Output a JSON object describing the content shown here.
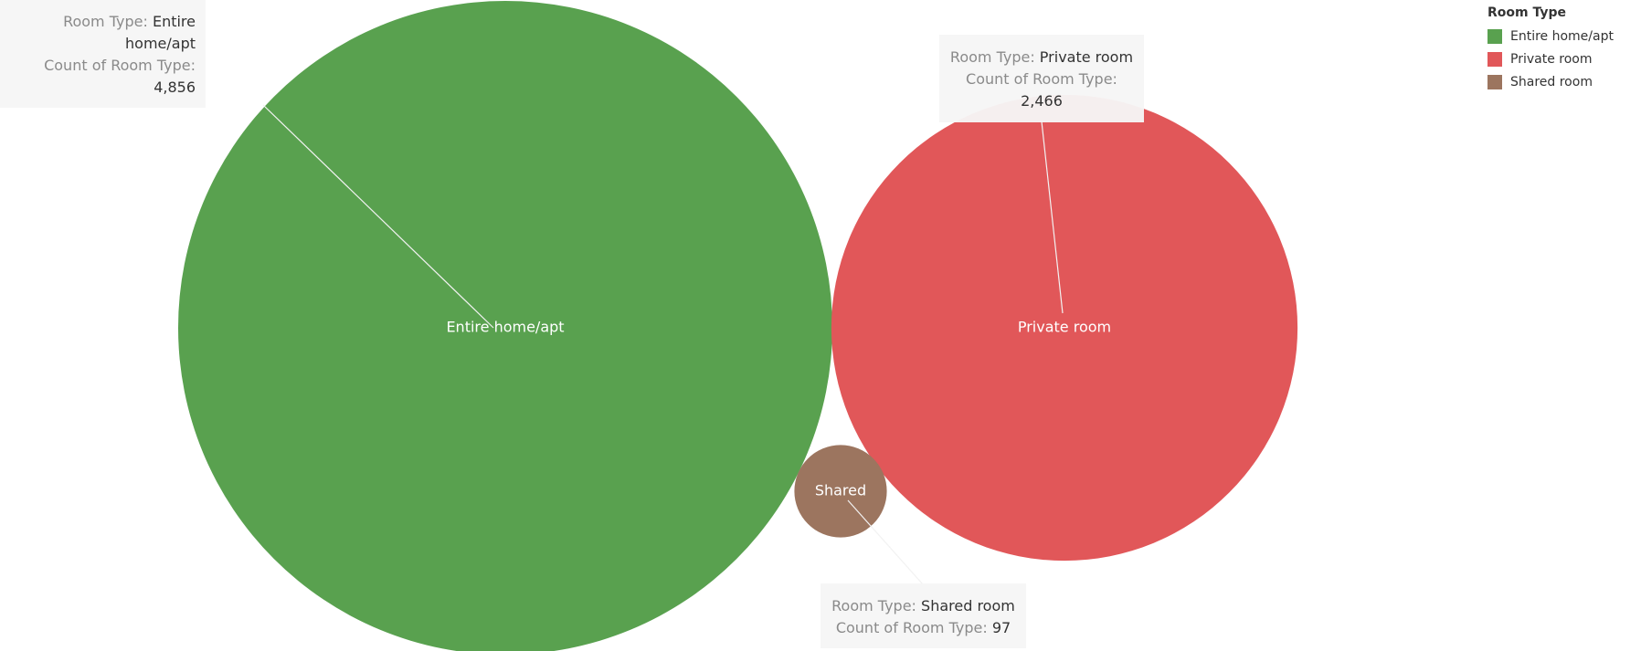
{
  "chart_data": {
    "type": "packed-bubble",
    "legend_title": "Room Type",
    "legend_position": "top-right",
    "items": [
      {
        "room_type": "Entire home/apt",
        "label": "Entire home/apt",
        "count": 4856,
        "count_text": "4,856",
        "color": "#59a14f"
      },
      {
        "room_type": "Private room",
        "label": "Private room",
        "count": 2466,
        "count_text": "2,466",
        "color": "#e15759"
      },
      {
        "room_type": "Shared room",
        "label": "Shared",
        "count": 97,
        "count_text": "97",
        "color": "#9c755f"
      }
    ],
    "tooltip_labels": {
      "room_type": "Room Type:",
      "count": "Count of Room Type:"
    }
  }
}
